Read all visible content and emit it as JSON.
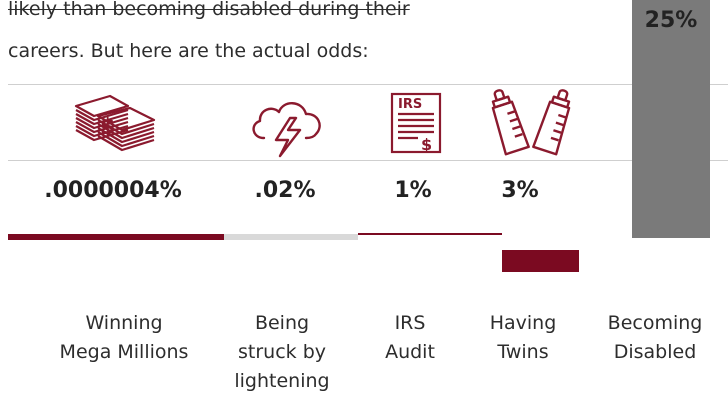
{
  "intro": {
    "line1": "likely than becoming disabled during their",
    "line2": "careers. But here are the actual odds:"
  },
  "colors": {
    "accent": "#7b0a21",
    "icon": "#8b1a2e",
    "bar": "#7a7a7a",
    "neutral_rule": "#d9d9d9"
  },
  "icons": [
    "money-stack-icon",
    "storm-cloud-lightning-icon",
    "irs-form-icon",
    "baby-bottles-icon"
  ],
  "chart_data": {
    "type": "table",
    "categories": [
      "Winning Mega Millions",
      "Being struck by lightening",
      "IRS Audit",
      "Having Twins",
      "Becoming Disabled"
    ],
    "value_labels": [
      ".0000004%",
      ".02%",
      "1%",
      "3%",
      "25%"
    ],
    "values": [
      4e-07,
      0.02,
      1,
      3,
      25
    ],
    "unit": "%"
  },
  "labels": {
    "c1_l1": "Winning",
    "c1_l2": "Mega Millions",
    "c2_l1": "Being",
    "c2_l2": "struck by",
    "c2_l3": "lightening",
    "c3_l1": "IRS",
    "c3_l2": "Audit",
    "c4_l1": "Having",
    "c4_l2": "Twins",
    "c5_l1": "Becoming",
    "c5_l2": "Disabled"
  },
  "irs_text": "IRS",
  "dollar_text": "$"
}
